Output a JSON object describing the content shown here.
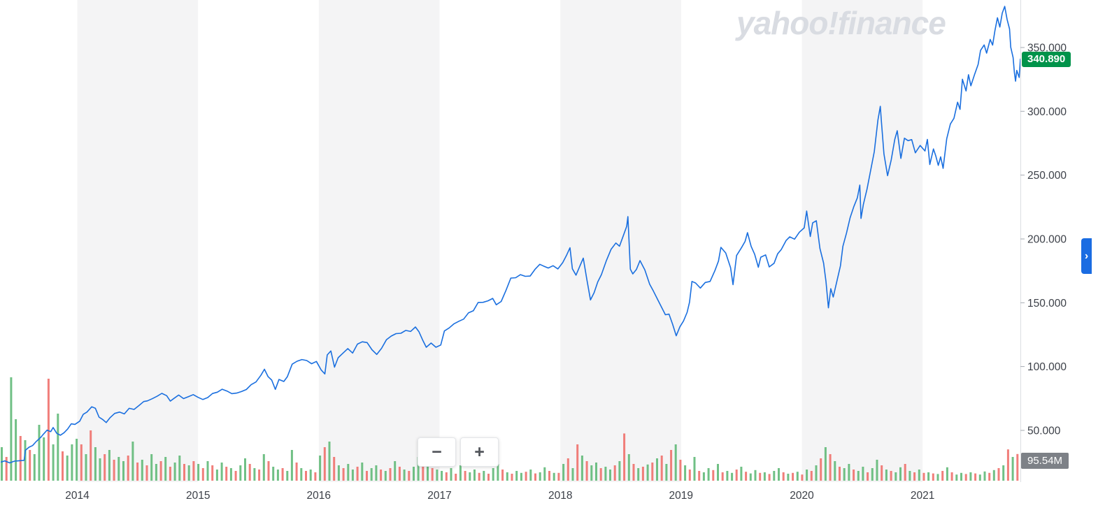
{
  "branding": {
    "watermark": "yahoo!finance",
    "watermark_color": "#d9dce2"
  },
  "price_badge": {
    "label": "340.890",
    "color": "#00934a"
  },
  "volume_badge": {
    "label": "95.54M",
    "color": "#7d8187"
  },
  "controls": {
    "zoom_out_label": "−",
    "zoom_in_label": "+",
    "expand_chevron_label": "›",
    "expand_chevron_color": "#1a6ce2"
  },
  "chart_data": {
    "type": "line",
    "title": "",
    "legend": [],
    "grid": "off",
    "last_price": 340.89,
    "last_volume_label": "95.54M",
    "x_axis": {
      "range": [
        2013.36,
        2021.81
      ],
      "tick_years": [
        2014,
        2015,
        2016,
        2017,
        2018,
        2019,
        2020,
        2021
      ],
      "tick_labels": [
        "2014",
        "2015",
        "2016",
        "2017",
        "2018",
        "2019",
        "2020",
        "2021"
      ]
    },
    "y_axis": {
      "side": "right",
      "tick_values": [
        350,
        300,
        250,
        200,
        150,
        100,
        50
      ],
      "tick_labels": [
        "350.000",
        "300.000",
        "250.000",
        "200.000",
        "150.000",
        "100.000",
        "50.000"
      ],
      "range_displayed": [
        10,
        388
      ]
    },
    "shaded_year_bands": [
      [
        2014,
        2015
      ],
      [
        2016,
        2017
      ],
      [
        2018,
        2019
      ],
      [
        2020,
        2021
      ]
    ],
    "colors": {
      "line": "#1a6fdf",
      "volume_up": "#60b978",
      "volume_down": "#ef706b",
      "band": "#f4f4f5",
      "axis_line": "#dcdee1",
      "axis_text": "#3c4048",
      "tick_mark": "#a6abb2"
    },
    "price_series": {
      "name": "Close",
      "points": [
        [
          2013.37,
          25.2
        ],
        [
          2013.4,
          26.1
        ],
        [
          2013.44,
          24.5
        ],
        [
          2013.48,
          25.9
        ],
        [
          2013.53,
          26.3
        ],
        [
          2013.56,
          26.5
        ],
        [
          2013.57,
          34.4
        ],
        [
          2013.6,
          36.8
        ],
        [
          2013.63,
          38.1
        ],
        [
          2013.66,
          41.3
        ],
        [
          2013.7,
          44.8
        ],
        [
          2013.72,
          47.1
        ],
        [
          2013.75,
          50.2
        ],
        [
          2013.78,
          49.0
        ],
        [
          2013.8,
          52.2
        ],
        [
          2013.83,
          47.6
        ],
        [
          2013.86,
          46.2
        ],
        [
          2013.89,
          48.1
        ],
        [
          2013.92,
          51.0
        ],
        [
          2013.95,
          55.1
        ],
        [
          2013.98,
          54.7
        ],
        [
          2014.02,
          57.2
        ],
        [
          2014.05,
          62.6
        ],
        [
          2014.08,
          64.3
        ],
        [
          2014.12,
          68.5
        ],
        [
          2014.15,
          67.3
        ],
        [
          2014.18,
          60.4
        ],
        [
          2014.21,
          58.5
        ],
        [
          2014.24,
          56.1
        ],
        [
          2014.27,
          59.8
        ],
        [
          2014.31,
          63.3
        ],
        [
          2014.35,
          64.3
        ],
        [
          2014.39,
          62.9
        ],
        [
          2014.43,
          67.3
        ],
        [
          2014.47,
          66.4
        ],
        [
          2014.51,
          69.4
        ],
        [
          2014.55,
          72.6
        ],
        [
          2014.58,
          73.1
        ],
        [
          2014.62,
          74.8
        ],
        [
          2014.66,
          76.7
        ],
        [
          2014.7,
          79.0
        ],
        [
          2014.74,
          77.2
        ],
        [
          2014.77,
          72.9
        ],
        [
          2014.8,
          75.0
        ],
        [
          2014.84,
          77.7
        ],
        [
          2014.88,
          74.9
        ],
        [
          2014.92,
          76.4
        ],
        [
          2014.96,
          78.0
        ],
        [
          2015.0,
          75.9
        ],
        [
          2015.04,
          74.2
        ],
        [
          2015.08,
          75.7
        ],
        [
          2015.12,
          78.9
        ],
        [
          2015.16,
          79.9
        ],
        [
          2015.2,
          82.2
        ],
        [
          2015.24,
          80.8
        ],
        [
          2015.28,
          78.8
        ],
        [
          2015.32,
          79.2
        ],
        [
          2015.36,
          80.4
        ],
        [
          2015.4,
          82.0
        ],
        [
          2015.44,
          85.8
        ],
        [
          2015.48,
          87.9
        ],
        [
          2015.52,
          93.1
        ],
        [
          2015.55,
          97.9
        ],
        [
          2015.58,
          92.1
        ],
        [
          2015.61,
          89.4
        ],
        [
          2015.64,
          82.1
        ],
        [
          2015.67,
          89.9
        ],
        [
          2015.71,
          88.3
        ],
        [
          2015.74,
          92.1
        ],
        [
          2015.78,
          101.9
        ],
        [
          2015.82,
          104.2
        ],
        [
          2015.86,
          105.5
        ],
        [
          2015.9,
          104.7
        ],
        [
          2015.94,
          102.2
        ],
        [
          2015.98,
          104.0
        ],
        [
          2016.02,
          97.3
        ],
        [
          2016.05,
          94.2
        ],
        [
          2016.07,
          109.1
        ],
        [
          2016.1,
          112.2
        ],
        [
          2016.13,
          99.5
        ],
        [
          2016.16,
          106.9
        ],
        [
          2016.2,
          110.5
        ],
        [
          2016.24,
          114.1
        ],
        [
          2016.28,
          110.6
        ],
        [
          2016.32,
          117.6
        ],
        [
          2016.36,
          119.4
        ],
        [
          2016.4,
          118.8
        ],
        [
          2016.44,
          113.2
        ],
        [
          2016.48,
          109.5
        ],
        [
          2016.52,
          114.3
        ],
        [
          2016.56,
          121.0
        ],
        [
          2016.6,
          123.9
        ],
        [
          2016.64,
          125.8
        ],
        [
          2016.68,
          126.1
        ],
        [
          2016.72,
          128.3
        ],
        [
          2016.76,
          127.5
        ],
        [
          2016.8,
          131.0
        ],
        [
          2016.83,
          127.2
        ],
        [
          2016.86,
          120.8
        ],
        [
          2016.89,
          115.1
        ],
        [
          2016.93,
          118.4
        ],
        [
          2016.97,
          115.1
        ],
        [
          2017.01,
          116.9
        ],
        [
          2017.04,
          127.9
        ],
        [
          2017.08,
          130.3
        ],
        [
          2017.12,
          133.5
        ],
        [
          2017.16,
          135.5
        ],
        [
          2017.2,
          137.2
        ],
        [
          2017.24,
          142.1
        ],
        [
          2017.28,
          143.7
        ],
        [
          2017.32,
          150.2
        ],
        [
          2017.36,
          150.3
        ],
        [
          2017.4,
          151.5
        ],
        [
          2017.44,
          153.4
        ],
        [
          2017.47,
          148.4
        ],
        [
          2017.51,
          151.0
        ],
        [
          2017.55,
          159.7
        ],
        [
          2017.59,
          169.3
        ],
        [
          2017.63,
          169.6
        ],
        [
          2017.67,
          172.0
        ],
        [
          2017.71,
          170.7
        ],
        [
          2017.75,
          170.9
        ],
        [
          2017.79,
          176.1
        ],
        [
          2017.83,
          180.1
        ],
        [
          2017.86,
          178.8
        ],
        [
          2017.9,
          177.2
        ],
        [
          2017.94,
          179.0
        ],
        [
          2017.98,
          176.5
        ],
        [
          2018.02,
          181.4
        ],
        [
          2018.05,
          186.9
        ],
        [
          2018.08,
          193.1
        ],
        [
          2018.1,
          176.6
        ],
        [
          2018.13,
          171.6
        ],
        [
          2018.16,
          178.3
        ],
        [
          2018.19,
          184.9
        ],
        [
          2018.22,
          168.2
        ],
        [
          2018.25,
          152.2
        ],
        [
          2018.28,
          157.9
        ],
        [
          2018.31,
          166.3
        ],
        [
          2018.34,
          172.0
        ],
        [
          2018.38,
          182.7
        ],
        [
          2018.42,
          191.8
        ],
        [
          2018.46,
          196.8
        ],
        [
          2018.49,
          194.3
        ],
        [
          2018.52,
          202.0
        ],
        [
          2018.55,
          209.9
        ],
        [
          2018.56,
          217.5
        ],
        [
          2018.58,
          176.3
        ],
        [
          2018.6,
          172.6
        ],
        [
          2018.63,
          176.0
        ],
        [
          2018.66,
          183.0
        ],
        [
          2018.7,
          175.7
        ],
        [
          2018.74,
          164.5
        ],
        [
          2018.77,
          159.3
        ],
        [
          2018.81,
          151.8
        ],
        [
          2018.84,
          146.2
        ],
        [
          2018.87,
          140.6
        ],
        [
          2018.9,
          141.1
        ],
        [
          2018.93,
          133.2
        ],
        [
          2018.96,
          124.1
        ],
        [
          2018.99,
          131.1
        ],
        [
          2019.02,
          135.7
        ],
        [
          2019.05,
          142.5
        ],
        [
          2019.07,
          150.4
        ],
        [
          2019.09,
          166.7
        ],
        [
          2019.12,
          165.5
        ],
        [
          2019.16,
          161.5
        ],
        [
          2019.2,
          165.9
        ],
        [
          2019.24,
          166.7
        ],
        [
          2019.28,
          175.2
        ],
        [
          2019.31,
          182.6
        ],
        [
          2019.33,
          193.4
        ],
        [
          2019.37,
          189.0
        ],
        [
          2019.41,
          177.5
        ],
        [
          2019.43,
          164.2
        ],
        [
          2019.46,
          187.0
        ],
        [
          2019.5,
          193.0
        ],
        [
          2019.53,
          198.0
        ],
        [
          2019.55,
          204.9
        ],
        [
          2019.58,
          194.2
        ],
        [
          2019.61,
          187.9
        ],
        [
          2019.64,
          177.8
        ],
        [
          2019.66,
          185.7
        ],
        [
          2019.7,
          187.5
        ],
        [
          2019.73,
          178.1
        ],
        [
          2019.77,
          180.9
        ],
        [
          2019.8,
          188.3
        ],
        [
          2019.83,
          191.7
        ],
        [
          2019.87,
          198.8
        ],
        [
          2019.9,
          201.6
        ],
        [
          2019.94,
          199.8
        ],
        [
          2019.98,
          205.3
        ],
        [
          2020.02,
          208.7
        ],
        [
          2020.04,
          221.8
        ],
        [
          2020.07,
          201.9
        ],
        [
          2020.09,
          212.6
        ],
        [
          2020.12,
          214.2
        ],
        [
          2020.15,
          192.5
        ],
        [
          2020.18,
          181.1
        ],
        [
          2020.2,
          166.8
        ],
        [
          2020.22,
          146.0
        ],
        [
          2020.24,
          161.0
        ],
        [
          2020.26,
          154.5
        ],
        [
          2020.29,
          166.8
        ],
        [
          2020.32,
          178.9
        ],
        [
          2020.34,
          194.2
        ],
        [
          2020.37,
          204.7
        ],
        [
          2020.4,
          216.5
        ],
        [
          2020.43,
          225.1
        ],
        [
          2020.46,
          232.2
        ],
        [
          2020.48,
          242.2
        ],
        [
          2020.49,
          216.1
        ],
        [
          2020.51,
          227.1
        ],
        [
          2020.54,
          239.0
        ],
        [
          2020.57,
          253.7
        ],
        [
          2020.6,
          268.4
        ],
        [
          2020.63,
          293.2
        ],
        [
          2020.65,
          303.9
        ],
        [
          2020.66,
          291.1
        ],
        [
          2020.68,
          266.6
        ],
        [
          2020.71,
          249.5
        ],
        [
          2020.74,
          261.9
        ],
        [
          2020.77,
          278.0
        ],
        [
          2020.79,
          284.8
        ],
        [
          2020.82,
          263.1
        ],
        [
          2020.85,
          278.9
        ],
        [
          2020.88,
          277.0
        ],
        [
          2020.91,
          277.8
        ],
        [
          2020.94,
          267.5
        ],
        [
          2020.98,
          273.2
        ],
        [
          2021.02,
          268.9
        ],
        [
          2021.04,
          278.0
        ],
        [
          2021.06,
          258.3
        ],
        [
          2021.09,
          270.5
        ],
        [
          2021.11,
          264.9
        ],
        [
          2021.13,
          257.6
        ],
        [
          2021.15,
          264.3
        ],
        [
          2021.17,
          255.3
        ],
        [
          2021.2,
          278.6
        ],
        [
          2021.23,
          290.1
        ],
        [
          2021.26,
          294.5
        ],
        [
          2021.29,
          307.1
        ],
        [
          2021.31,
          301.5
        ],
        [
          2021.33,
          325.1
        ],
        [
          2021.36,
          315.9
        ],
        [
          2021.38,
          328.7
        ],
        [
          2021.4,
          320.0
        ],
        [
          2021.43,
          328.7
        ],
        [
          2021.46,
          336.8
        ],
        [
          2021.48,
          347.7
        ],
        [
          2021.51,
          352.0
        ],
        [
          2021.53,
          345.6
        ],
        [
          2021.56,
          356.3
        ],
        [
          2021.58,
          351.9
        ],
        [
          2021.6,
          363.5
        ],
        [
          2021.62,
          373.3
        ],
        [
          2021.64,
          366.0
        ],
        [
          2021.66,
          377.0
        ],
        [
          2021.68,
          382.2
        ],
        [
          2021.7,
          372.0
        ],
        [
          2021.72,
          364.5
        ],
        [
          2021.73,
          350.2
        ],
        [
          2021.75,
          342.1
        ],
        [
          2021.76,
          330.5
        ],
        [
          2021.77,
          323.6
        ],
        [
          2021.78,
          332.0
        ],
        [
          2021.8,
          326.5
        ],
        [
          2021.81,
          340.89
        ]
      ]
    },
    "volume_series": {
      "units": "millions of shares",
      "sign_convention": "positive = up day (green bar), negative = down day (red bar)",
      "values": [
        120,
        -85,
        370,
        220,
        -160,
        145,
        -110,
        95,
        200,
        155,
        -365,
        130,
        240,
        -105,
        90,
        130,
        150,
        -130,
        95,
        -180,
        120,
        80,
        -95,
        110,
        -75,
        85,
        70,
        -90,
        140,
        -65,
        75,
        -55,
        95,
        60,
        -70,
        85,
        -50,
        65,
        90,
        -60,
        55,
        -70,
        60,
        -45,
        70,
        -55,
        40,
        65,
        -50,
        45,
        -35,
        55,
        80,
        -60,
        45,
        -40,
        95,
        -70,
        50,
        40,
        -45,
        35,
        110,
        -65,
        45,
        -35,
        40,
        -30,
        90,
        -120,
        140,
        -85,
        55,
        -45,
        60,
        40,
        -50,
        65,
        -35,
        45,
        55,
        -40,
        35,
        -45,
        70,
        -50,
        40,
        -35,
        50,
        85,
        -110,
        60,
        -45,
        40,
        35,
        -30,
        45,
        -25,
        55,
        -35,
        30,
        40,
        -28,
        35,
        -25,
        45,
        60,
        -40,
        30,
        -25,
        35,
        28,
        -32,
        40,
        -26,
        30,
        48,
        -35,
        28,
        -28,
        60,
        -80,
        45,
        -130,
        90,
        -70,
        55,
        65,
        -45,
        50,
        40,
        -55,
        70,
        -169,
        95,
        -60,
        45,
        -50,
        58,
        -65,
        80,
        -90,
        60,
        -110,
        130,
        -75,
        55,
        -40,
        85,
        -35,
        30,
        45,
        -38,
        60,
        -30,
        35,
        28,
        -40,
        50,
        -32,
        26,
        38,
        -28,
        30,
        -24,
        35,
        45,
        -30,
        25,
        -28,
        32,
        -22,
        40,
        -35,
        55,
        -80,
        120,
        -95,
        70,
        -50,
        45,
        60,
        -40,
        35,
        50,
        -30,
        45,
        75,
        -55,
        40,
        -35,
        30,
        48,
        -60,
        35,
        -30,
        40,
        -28,
        30,
        -26,
        24,
        -35,
        48,
        -30,
        22,
        28,
        -24,
        30,
        -26,
        22,
        33,
        -28,
        38,
        -45,
        55,
        -112,
        85,
        -95.54
      ]
    }
  }
}
